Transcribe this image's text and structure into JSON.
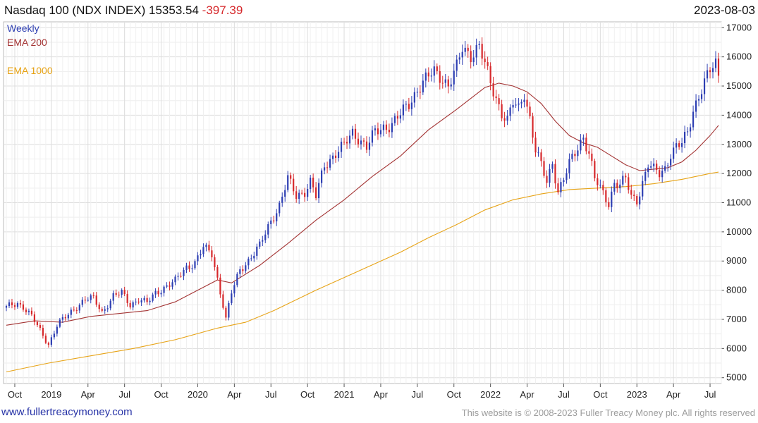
{
  "header": {
    "title": "Nasdaq 100 (NDX INDEX) 15353.54",
    "change": "-397.39",
    "date": "2023-08-03"
  },
  "legend": {
    "weekly": "Weekly",
    "ema200": "EMA 200",
    "ema1000": "EMA 1000"
  },
  "footer": {
    "website": "www.fullertreacymoney.com",
    "copyright": "This website is © 2008-2023 Fuller Treacy Money plc. All rights reserved"
  },
  "colors": {
    "up": "#2d3eb2",
    "down": "#d6282b",
    "ema200": "#a33333",
    "ema1000": "#e7a316",
    "grid": "#dddddd"
  },
  "chart_data": {
    "type": "candlestick",
    "interval": "weekly",
    "ylim": [
      4800,
      17200
    ],
    "y_ticks": [
      5000,
      6000,
      7000,
      8000,
      9000,
      10000,
      11000,
      12000,
      13000,
      14000,
      15000,
      16000,
      17000
    ],
    "x_ticks": [
      {
        "label": "Oct",
        "t": 3
      },
      {
        "label": "2019",
        "t": 16
      },
      {
        "label": "Apr",
        "t": 29
      },
      {
        "label": "Jul",
        "t": 42
      },
      {
        "label": "Oct",
        "t": 55
      },
      {
        "label": "2020",
        "t": 68
      },
      {
        "label": "Apr",
        "t": 81
      },
      {
        "label": "Jul",
        "t": 94
      },
      {
        "label": "Oct",
        "t": 107
      },
      {
        "label": "2021",
        "t": 120
      },
      {
        "label": "Apr",
        "t": 133
      },
      {
        "label": "Jul",
        "t": 146
      },
      {
        "label": "Oct",
        "t": 159
      },
      {
        "label": "2022",
        "t": 172
      },
      {
        "label": "Apr",
        "t": 185
      },
      {
        "label": "Jul",
        "t": 198
      },
      {
        "label": "Oct",
        "t": 211
      },
      {
        "label": "2023",
        "t": 224
      },
      {
        "label": "Apr",
        "t": 237
      },
      {
        "label": "Jul",
        "t": 250
      }
    ],
    "t_range": [
      -1,
      254
    ],
    "close_anchors": [
      [
        0,
        7400
      ],
      [
        4,
        7550
      ],
      [
        6,
        7450
      ],
      [
        9,
        7100
      ],
      [
        12,
        6600
      ],
      [
        15,
        6150
      ],
      [
        18,
        6800
      ],
      [
        22,
        7150
      ],
      [
        25,
        7450
      ],
      [
        28,
        7700
      ],
      [
        31,
        7700
      ],
      [
        34,
        7250
      ],
      [
        38,
        7800
      ],
      [
        41,
        7900
      ],
      [
        44,
        7500
      ],
      [
        47,
        7700
      ],
      [
        50,
        7550
      ],
      [
        53,
        7900
      ],
      [
        56,
        8100
      ],
      [
        60,
        8300
      ],
      [
        64,
        8800
      ],
      [
        67,
        8950
      ],
      [
        70,
        9450
      ],
      [
        73,
        9250
      ],
      [
        75,
        8400
      ],
      [
        77,
        7500
      ],
      [
        78,
        7000
      ],
      [
        80,
        7900
      ],
      [
        83,
        8700
      ],
      [
        87,
        9150
      ],
      [
        90,
        9500
      ],
      [
        94,
        10400
      ],
      [
        97,
        10900
      ],
      [
        100,
        11800
      ],
      [
        103,
        11250
      ],
      [
        106,
        11400
      ],
      [
        108,
        11700
      ],
      [
        110,
        11200
      ],
      [
        113,
        12300
      ],
      [
        117,
        12700
      ],
      [
        120,
        12950
      ],
      [
        123,
        13400
      ],
      [
        125,
        13250
      ],
      [
        128,
        12900
      ],
      [
        131,
        13400
      ],
      [
        134,
        13600
      ],
      [
        137,
        13700
      ],
      [
        140,
        14000
      ],
      [
        143,
        14400
      ],
      [
        146,
        14900
      ],
      [
        149,
        15200
      ],
      [
        152,
        15500
      ],
      [
        155,
        15300
      ],
      [
        157,
        15000
      ],
      [
        160,
        15600
      ],
      [
        162,
        16300
      ],
      [
        165,
        16100
      ],
      [
        168,
        16350
      ],
      [
        170,
        15700
      ],
      [
        172,
        15100
      ],
      [
        174,
        14600
      ],
      [
        176,
        14100
      ],
      [
        178,
        13800
      ],
      [
        180,
        14400
      ],
      [
        182,
        14200
      ],
      [
        184,
        14800
      ],
      [
        186,
        13900
      ],
      [
        188,
        12800
      ],
      [
        190,
        12250
      ],
      [
        192,
        11700
      ],
      [
        194,
        12400
      ],
      [
        196,
        11400
      ],
      [
        198,
        11800
      ],
      [
        200,
        12300
      ],
      [
        203,
        12900
      ],
      [
        205,
        13300
      ],
      [
        207,
        12700
      ],
      [
        209,
        11800
      ],
      [
        212,
        11300
      ],
      [
        214,
        11000
      ],
      [
        216,
        11700
      ],
      [
        218,
        11600
      ],
      [
        220,
        11800
      ],
      [
        222,
        11200
      ],
      [
        224,
        11100
      ],
      [
        226,
        11700
      ],
      [
        228,
        12300
      ],
      [
        230,
        12100
      ],
      [
        232,
        12000
      ],
      [
        234,
        12200
      ],
      [
        236,
        12700
      ],
      [
        238,
        12900
      ],
      [
        240,
        13000
      ],
      [
        242,
        13400
      ],
      [
        244,
        14200
      ],
      [
        246,
        14700
      ],
      [
        248,
        15100
      ],
      [
        250,
        15500
      ],
      [
        252,
        15750
      ],
      [
        253,
        15353
      ]
    ],
    "ema200": [
      [
        0,
        6800
      ],
      [
        10,
        6950
      ],
      [
        20,
        6900
      ],
      [
        30,
        7100
      ],
      [
        40,
        7200
      ],
      [
        50,
        7300
      ],
      [
        60,
        7600
      ],
      [
        70,
        8100
      ],
      [
        75,
        8350
      ],
      [
        80,
        8250
      ],
      [
        90,
        8850
      ],
      [
        100,
        9600
      ],
      [
        110,
        10400
      ],
      [
        120,
        11100
      ],
      [
        130,
        11900
      ],
      [
        140,
        12600
      ],
      [
        150,
        13500
      ],
      [
        160,
        14200
      ],
      [
        170,
        14950
      ],
      [
        175,
        15100
      ],
      [
        180,
        15000
      ],
      [
        185,
        14800
      ],
      [
        190,
        14400
      ],
      [
        195,
        13800
      ],
      [
        200,
        13300
      ],
      [
        205,
        13050
      ],
      [
        210,
        12900
      ],
      [
        215,
        12600
      ],
      [
        220,
        12300
      ],
      [
        225,
        12100
      ],
      [
        230,
        12150
      ],
      [
        235,
        12200
      ],
      [
        240,
        12400
      ],
      [
        245,
        12800
      ],
      [
        250,
        13300
      ],
      [
        253,
        13650
      ]
    ],
    "ema1000": [
      [
        0,
        5200
      ],
      [
        15,
        5500
      ],
      [
        30,
        5750
      ],
      [
        45,
        6000
      ],
      [
        60,
        6300
      ],
      [
        75,
        6700
      ],
      [
        85,
        6900
      ],
      [
        95,
        7300
      ],
      [
        110,
        8000
      ],
      [
        125,
        8650
      ],
      [
        140,
        9300
      ],
      [
        150,
        9800
      ],
      [
        160,
        10250
      ],
      [
        170,
        10750
      ],
      [
        180,
        11100
      ],
      [
        190,
        11300
      ],
      [
        200,
        11450
      ],
      [
        210,
        11500
      ],
      [
        220,
        11550
      ],
      [
        230,
        11650
      ],
      [
        240,
        11800
      ],
      [
        250,
        12000
      ],
      [
        253,
        12050
      ]
    ]
  }
}
